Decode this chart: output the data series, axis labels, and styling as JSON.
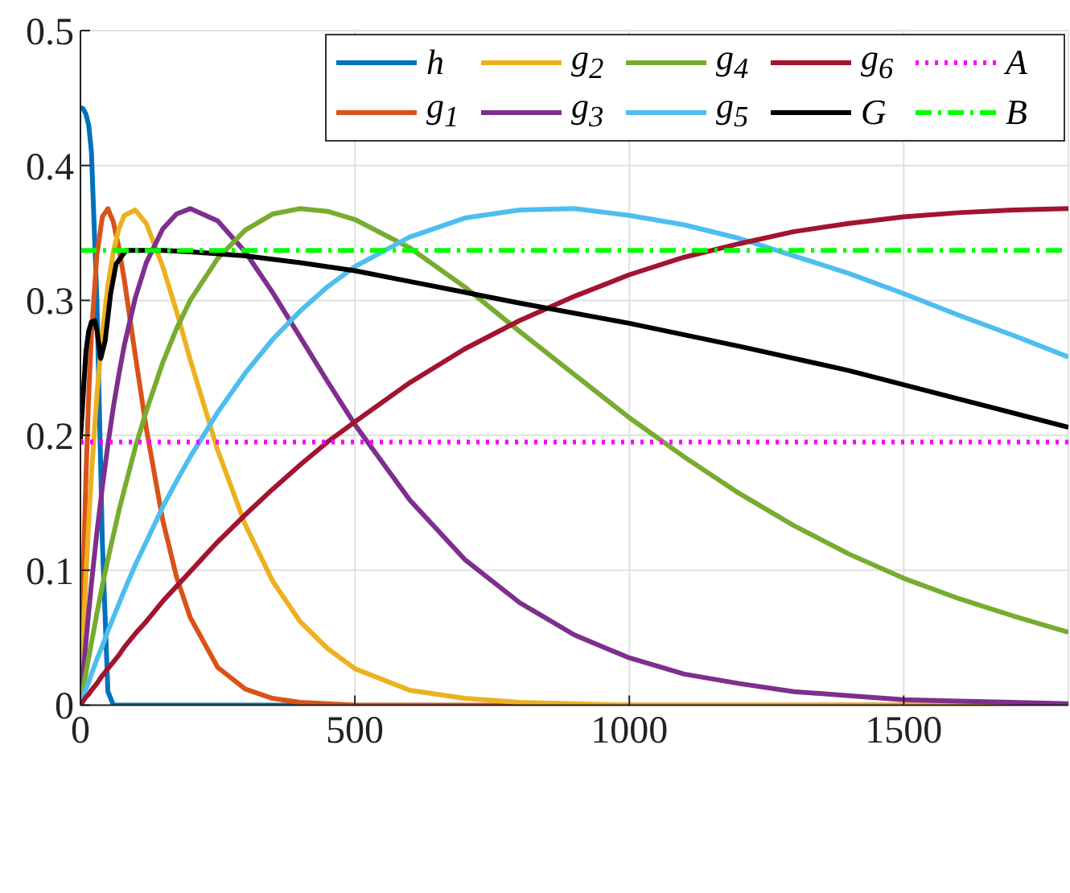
{
  "chart_data": {
    "type": "line",
    "x": [
      0,
      5,
      10,
      15,
      20,
      30,
      40,
      50,
      60,
      70,
      80,
      100,
      120,
      150,
      175,
      200,
      250,
      300,
      350,
      400,
      450,
      500,
      600,
      700,
      800,
      900,
      1000,
      1100,
      1200,
      1300,
      1400,
      1500,
      1600,
      1700,
      1800
    ],
    "series": [
      {
        "name": "h",
        "color": "#0072bd",
        "values": [
          0.443,
          0.442,
          0.438,
          0.43,
          0.41,
          0.3,
          0.12,
          0.01,
          0,
          0,
          0,
          0,
          0,
          0,
          0,
          0,
          0,
          0,
          0,
          0,
          0,
          null,
          null,
          null,
          null,
          null,
          null,
          null,
          null,
          null,
          null,
          null,
          null,
          null,
          null
        ]
      },
      {
        "name": "g$_{1}$",
        "color": "#d95319",
        "values": [
          0,
          0.094,
          0.169,
          0.229,
          0.275,
          0.334,
          0.362,
          0.368,
          0.358,
          0.339,
          0.315,
          0.259,
          0.205,
          0.137,
          0.095,
          0.065,
          0.028,
          0.012,
          0.005,
          0.002,
          0.001,
          0,
          0,
          0,
          0,
          0,
          0,
          0,
          0,
          0,
          0,
          0,
          0,
          0,
          0
        ]
      },
      {
        "name": "g$_{2}$",
        "color": "#edb120",
        "values": [
          0,
          0.05,
          0.095,
          0.135,
          0.171,
          0.23,
          0.276,
          0.311,
          0.336,
          0.353,
          0.363,
          0.367,
          0.357,
          0.325,
          0.292,
          0.256,
          0.189,
          0.134,
          0.092,
          0.062,
          0.042,
          0.027,
          0.011,
          0.005,
          0.002,
          0.001,
          0,
          0,
          0,
          0,
          0,
          0,
          0,
          0,
          0
        ]
      },
      {
        "name": "g$_{3}$",
        "color": "#7e2f8e",
        "values": [
          0,
          0.024,
          0.047,
          0.069,
          0.09,
          0.128,
          0.162,
          0.193,
          0.221,
          0.245,
          0.267,
          0.302,
          0.328,
          0.353,
          0.364,
          0.368,
          0.359,
          0.336,
          0.306,
          0.273,
          0.24,
          0.208,
          0.152,
          0.108,
          0.076,
          0.052,
          0.035,
          0.023,
          0.016,
          0.01,
          0.007,
          0.004,
          0.003,
          0.002,
          0.001
        ]
      },
      {
        "name": "g$_{4}$",
        "color": "#77ac30",
        "values": [
          0,
          0.012,
          0.024,
          0.035,
          0.046,
          0.068,
          0.089,
          0.108,
          0.126,
          0.144,
          0.16,
          0.191,
          0.218,
          0.254,
          0.279,
          0.3,
          0.331,
          0.352,
          0.364,
          0.368,
          0.366,
          0.36,
          0.339,
          0.31,
          0.277,
          0.245,
          0.213,
          0.184,
          0.157,
          0.133,
          0.112,
          0.094,
          0.079,
          0.066,
          0.054
        ]
      },
      {
        "name": "g$_{5}$",
        "color": "#4dbeee",
        "values": [
          0,
          0.006,
          0.012,
          0.017,
          0.023,
          0.034,
          0.044,
          0.055,
          0.065,
          0.075,
          0.085,
          0.104,
          0.121,
          0.147,
          0.166,
          0.184,
          0.217,
          0.246,
          0.271,
          0.292,
          0.31,
          0.325,
          0.347,
          0.361,
          0.367,
          0.368,
          0.363,
          0.356,
          0.346,
          0.333,
          0.32,
          0.305,
          0.289,
          0.274,
          0.258
        ]
      },
      {
        "name": "g$_{6}$",
        "color": "#a2142f",
        "values": [
          0,
          0.003,
          0.006,
          0.008,
          0.011,
          0.016,
          0.022,
          0.027,
          0.032,
          0.037,
          0.043,
          0.053,
          0.062,
          0.077,
          0.088,
          0.099,
          0.121,
          0.141,
          0.16,
          0.178,
          0.195,
          0.21,
          0.239,
          0.264,
          0.285,
          0.303,
          0.319,
          0.332,
          0.342,
          0.351,
          0.357,
          0.362,
          0.365,
          0.367,
          0.368
        ]
      },
      {
        "name": "G",
        "color": "#000000",
        "x": [
          0,
          5,
          10,
          15,
          20,
          26,
          30,
          37,
          45,
          55,
          65,
          83,
          100,
          150,
          200,
          300,
          400,
          500,
          600,
          700,
          800,
          1000,
          1200,
          1400,
          1600,
          1800
        ],
        "values": [
          0.197,
          0.23,
          0.262,
          0.277,
          0.284,
          0.285,
          0.278,
          0.257,
          0.27,
          0.305,
          0.327,
          0.337,
          0.337,
          0.337,
          0.336,
          0.333,
          0.328,
          0.322,
          0.314,
          0.306,
          0.298,
          0.283,
          0.266,
          0.248,
          0.227,
          0.206
        ]
      },
      {
        "name": "A",
        "color": "#ff00ff",
        "line_style": "dotted",
        "x": [
          0,
          1800
        ],
        "values": [
          0.195,
          0.195
        ]
      },
      {
        "name": "B",
        "color": "#00ff00",
        "line_style": "dashdot",
        "x": [
          0,
          1800
        ],
        "values": [
          0.337,
          0.337
        ]
      }
    ],
    "xlim": [
      0,
      1800
    ],
    "xticks": [
      0,
      500,
      1000,
      1500
    ],
    "ylim": [
      0,
      0.5
    ],
    "yticks": [
      0,
      0.1,
      0.2,
      0.3,
      0.4,
      0.5
    ],
    "grid": true,
    "legend": "top right",
    "marker": "none"
  }
}
